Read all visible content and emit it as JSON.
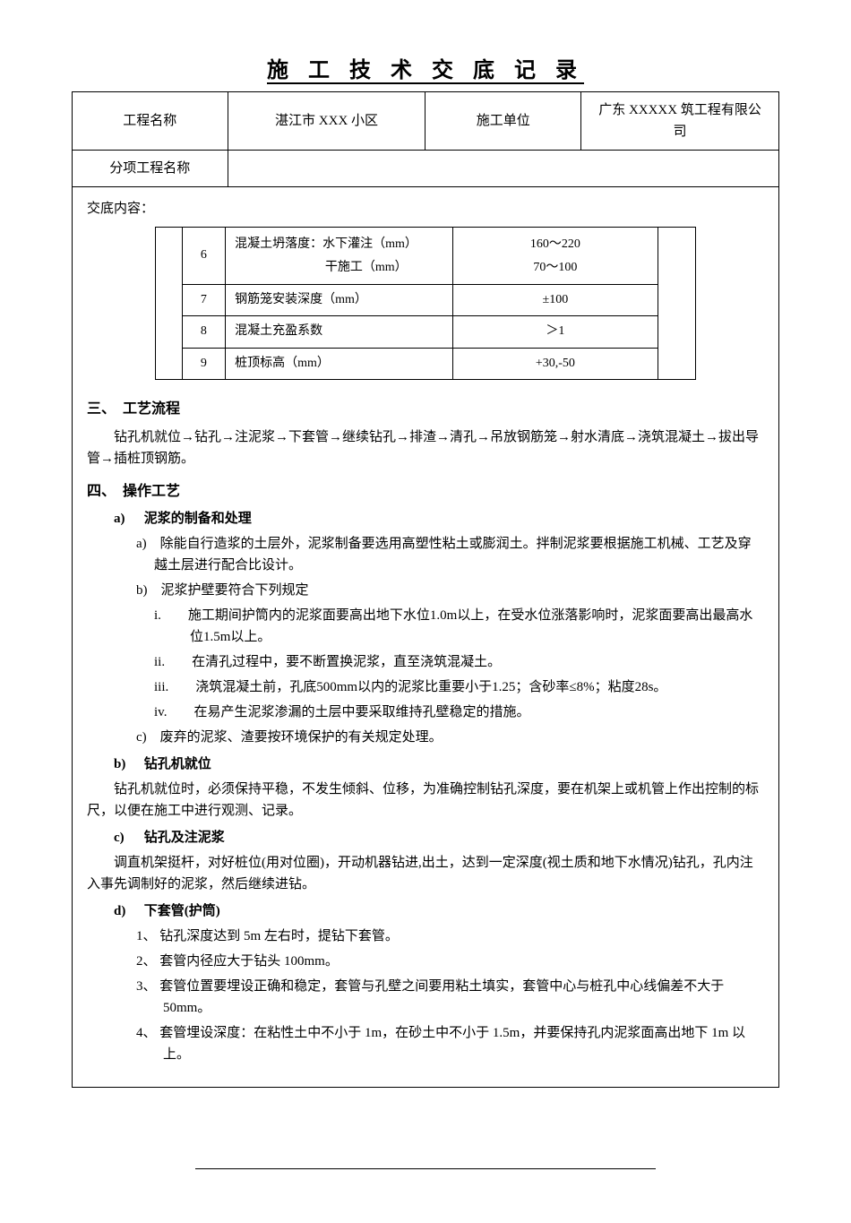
{
  "doc_title": "施 工 技 术 交 底 记 录",
  "header": {
    "project_name_label": "工程名称",
    "project_name_value": "湛江市 XXX 小区",
    "construction_unit_label": "施工单位",
    "construction_unit_value": "广东 XXXXX 筑工程有限公司",
    "sub_project_label": "分项工程名称",
    "sub_project_value": ""
  },
  "disclosure_label": "交底内容：",
  "tolerance_table": {
    "rows": [
      {
        "num": "6",
        "desc_line1": "混凝土坍落度：水下灌注（mm）",
        "desc_line2": "干施工（mm）",
        "val_line1": "160～220",
        "val_line2": "70～100"
      },
      {
        "num": "7",
        "desc": "钢筋笼安装深度（mm）",
        "val": "±100"
      },
      {
        "num": "8",
        "desc": "混凝土充盈系数",
        "val": "＞1"
      },
      {
        "num": "9",
        "desc": "桩顶标高（mm）",
        "val": "+30,-50"
      }
    ]
  },
  "section3": {
    "heading": "三、　工艺流程",
    "body": "钻孔机就位→钻孔→注泥浆→下套管→继续钻孔→排渣→清孔→吊放钢筋笼→射水清底→浇筑混凝土→拔出导管→插桩顶钢筋。"
  },
  "section4": {
    "heading": "四、　操作工艺",
    "a": {
      "label": "a)",
      "title": "泥浆的制备和处理",
      "items": {
        "a": "a)　除能自行造浆的土层外，泥浆制备要选用高塑性粘土或膨润土。拌制泥浆要根据施工机械、工艺及穿越土层进行配合比设计。",
        "b": "b)　泥浆护壁要符合下列规定",
        "b_i": "i.　　施工期间护筒内的泥浆面要高出地下水位1.0m以上，在受水位涨落影响时，泥浆面要高出最高水位1.5m以上。",
        "b_ii": "ii.　　在清孔过程中，要不断置换泥浆，直至浇筑混凝土。",
        "b_iii": "iii.　　浇筑混凝土前，孔底500mm以内的泥浆比重要小于1.25；含砂率≤8%；粘度28s。",
        "b_iv": "iv.　　在易产生泥浆渗漏的土层中要采取维持孔壁稳定的措施。",
        "c": "c)　废弃的泥浆、渣要按环境保护的有关规定处理。"
      }
    },
    "b": {
      "label": "b)",
      "title": "钻孔机就位",
      "body": "钻孔机就位时，必须保持平稳，不发生倾斜、位移，为准确控制钻孔深度，要在机架上或机管上作出控制的标尺，以便在施工中进行观测、记录。"
    },
    "c": {
      "label": "c)",
      "title": "钻孔及注泥浆",
      "body": "调直机架挺杆，对好桩位(用对位圈)，开动机器钻进,出土，达到一定深度(视土质和地下水情况)钻孔，孔内注入事先调制好的泥浆，然后继续进钻。"
    },
    "d": {
      "label": "d)",
      "title": "下套管(护筒)",
      "items": {
        "1": "1、 钻孔深度达到 5m 左右时，提钻下套管。",
        "2": "2、 套管内径应大于钻头 100mm。",
        "3": "3、 套管位置要埋设正确和稳定，套管与孔壁之间要用粘土填实，套管中心与桩孔中心线偏差不大于 50mm。",
        "4": "4、 套管埋设深度：在粘性土中不小于 1m，在砂土中不小于 1.5m，并要保持孔内泥浆面高出地下 1m 以上。"
      }
    }
  }
}
